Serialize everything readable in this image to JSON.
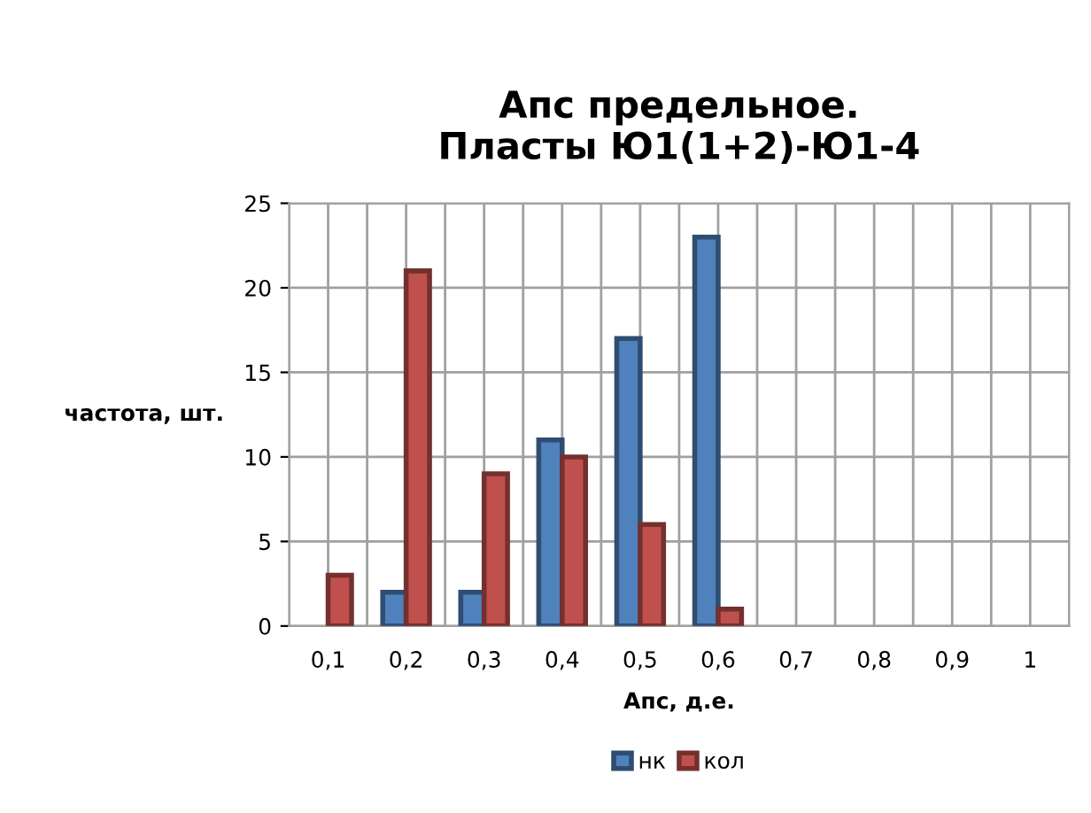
{
  "chart_data": {
    "type": "bar",
    "title": "Апс предельное.\nПласты Ю1(1+2)-Ю1-4",
    "xlabel": "Апс, д.е.",
    "ylabel": "частота, шт.",
    "categories": [
      "0,1",
      "0,2",
      "0,3",
      "0,4",
      "0,5",
      "0,6",
      "0,7",
      "0,8",
      "0,9",
      "1"
    ],
    "series": [
      {
        "name": "нк",
        "color": "#4f81bd",
        "values": [
          0,
          2,
          2,
          11,
          17,
          23,
          0,
          0,
          0,
          0
        ]
      },
      {
        "name": "кол",
        "color": "#c0504d",
        "values": [
          3,
          21,
          9,
          10,
          6,
          1,
          0,
          0,
          0,
          0
        ]
      }
    ],
    "ylim": [
      0,
      25
    ],
    "yticks": [
      0,
      5,
      10,
      15,
      20,
      25
    ],
    "grid": true,
    "legend": "bottom"
  }
}
